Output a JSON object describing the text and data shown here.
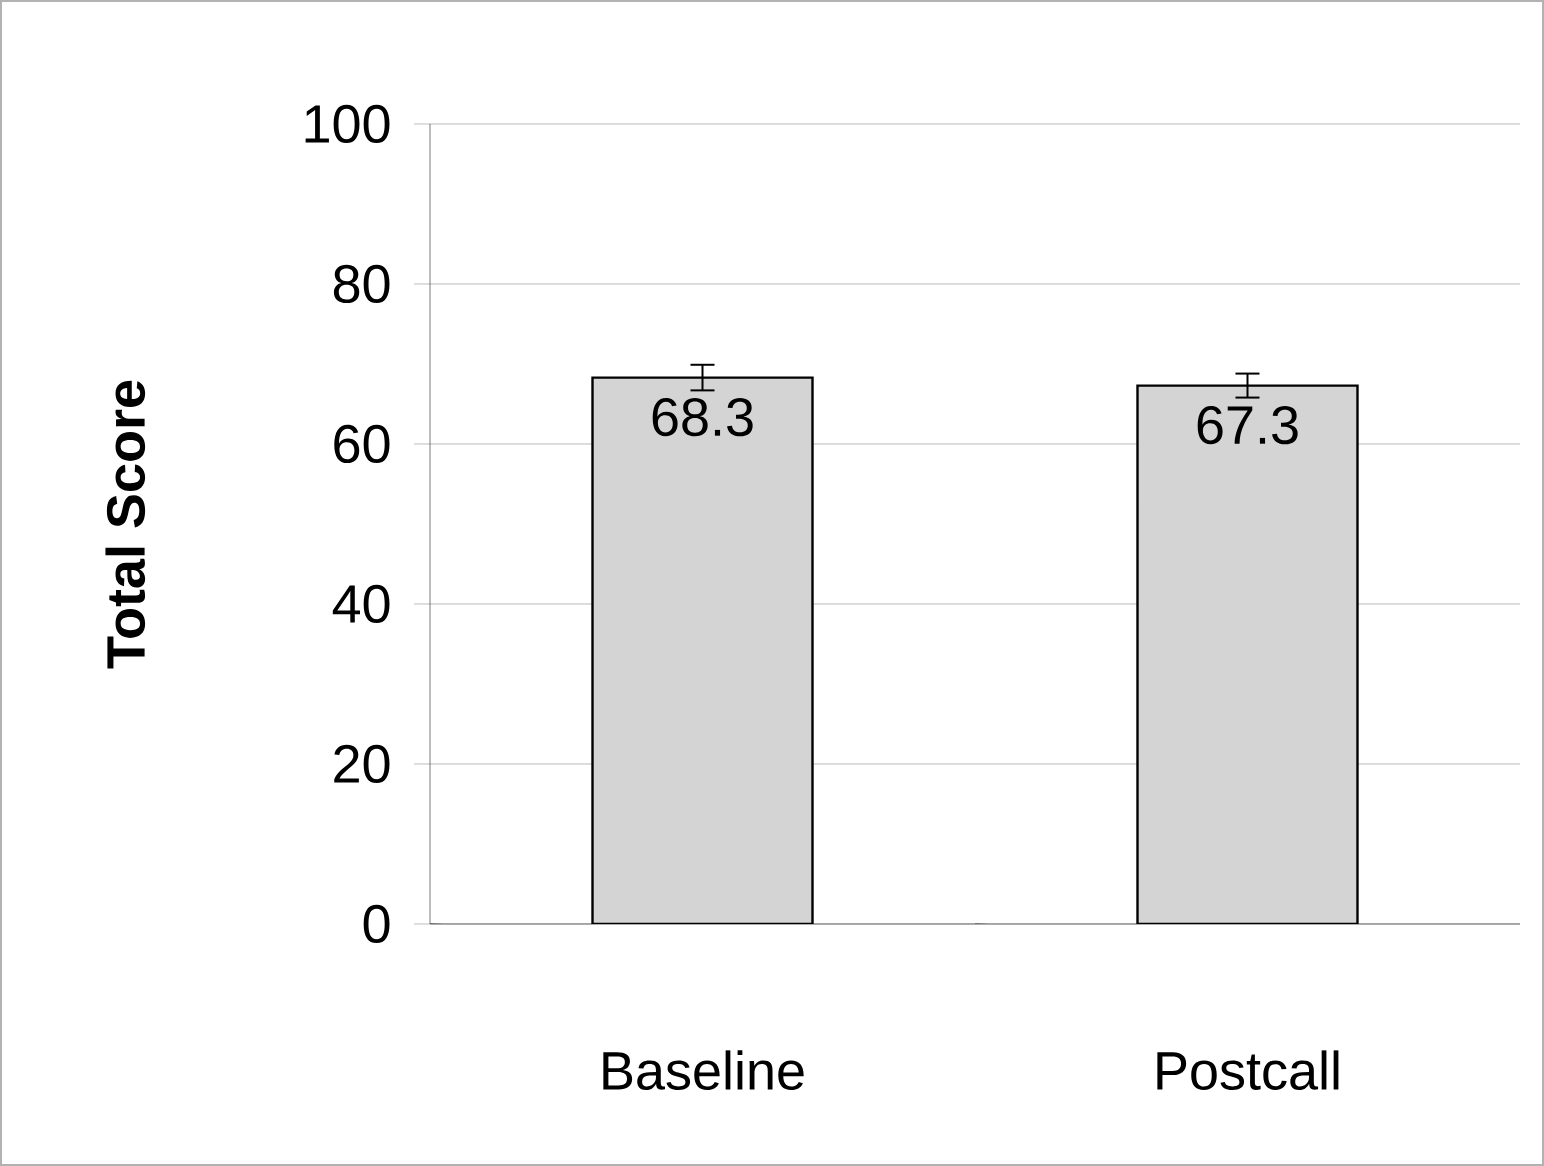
{
  "chart_data": {
    "type": "bar",
    "ylabel": "Total Score",
    "categories": [
      "Baseline",
      "Postcall"
    ],
    "values": [
      68.3,
      67.3
    ],
    "errors": [
      1.6,
      1.5
    ],
    "color": "#d4d4d4",
    "data_labels": true,
    "ylim": [
      0,
      100
    ],
    "yticks": [
      0,
      20,
      40,
      60,
      80,
      100
    ],
    "grid": "y"
  }
}
